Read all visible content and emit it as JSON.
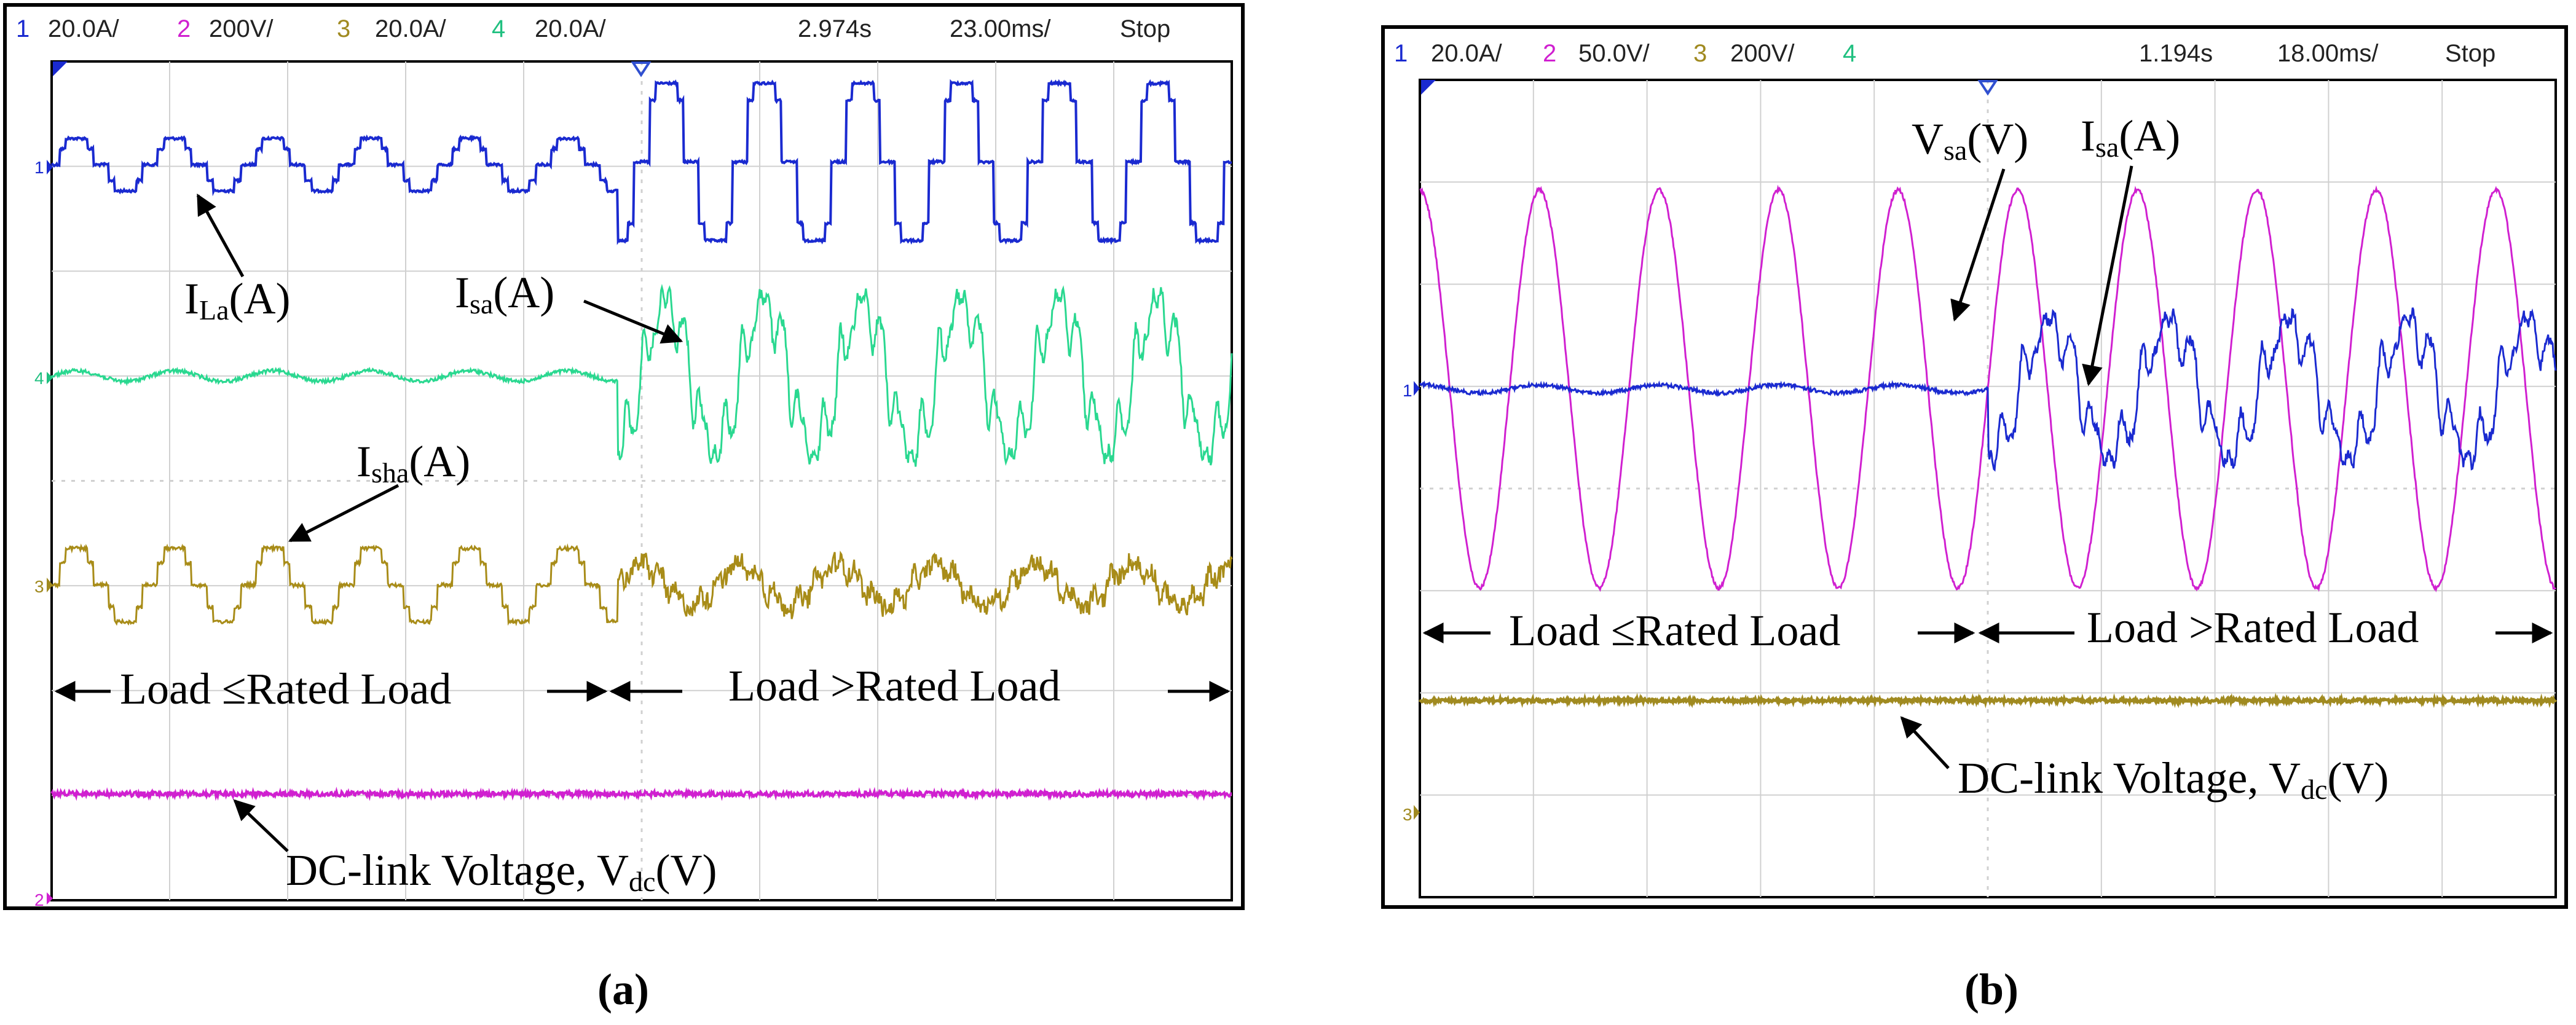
{
  "panels": [
    {
      "id": "a",
      "caption": "(a)",
      "header": {
        "channels": [
          {
            "num": "1",
            "scale": "20.0A/",
            "color": "#1a2ad0"
          },
          {
            "num": "2",
            "scale": "200V/",
            "color": "#d020d0"
          },
          {
            "num": "3",
            "scale": "20.0A/",
            "color": "#a08a20"
          },
          {
            "num": "4",
            "scale": "20.0A/",
            "color": "#20c080"
          }
        ],
        "time": "2.974s",
        "timebase": "23.00ms/",
        "status": "Stop"
      },
      "labels": {
        "ila": {
          "main": "I",
          "sub": "La",
          "unit": "(A)"
        },
        "isa": {
          "main": "I",
          "sub": "sa",
          "unit": "(A)"
        },
        "isha": {
          "main": "I",
          "sub": "sha",
          "unit": "(A)"
        },
        "load_left": "Load ≤Rated Load",
        "load_right": "Load >Rated Load",
        "dc": {
          "main": "DC-link Voltage, V",
          "sub": "dc",
          "unit": "(V)"
        }
      }
    },
    {
      "id": "b",
      "caption": "(b)",
      "header": {
        "channels": [
          {
            "num": "1",
            "scale": "20.0A/",
            "color": "#1a2ad0"
          },
          {
            "num": "2",
            "scale": "50.0V/",
            "color": "#d020d0"
          },
          {
            "num": "3",
            "scale": "200V/",
            "color": "#a08a20"
          },
          {
            "num": "4",
            "scale": "",
            "color": "#20c080"
          }
        ],
        "time": "1.194s",
        "timebase": "18.00ms/",
        "status": "Stop"
      },
      "labels": {
        "vsa": {
          "main": "V",
          "sub": "sa",
          "unit": "(V)"
        },
        "isa": {
          "main": "I",
          "sub": "sa",
          "unit": "(A)"
        },
        "load_left": "Load ≤Rated Load",
        "load_right": "Load >Rated Load",
        "dc": {
          "main": "DC-link Voltage, V",
          "sub": "dc",
          "unit": "(V)"
        }
      }
    }
  ],
  "chart_data": [
    {
      "type": "line",
      "panel": "a",
      "x_divisions": 10,
      "y_divisions": 8,
      "grid": true,
      "series": [
        {
          "name": "I_La(A)",
          "channel": 1,
          "shape": "stepped square wave",
          "cycles": 12,
          "amplitude_div_before": 0.25,
          "amplitude_div_after": 0.75
        },
        {
          "name": "I_sa(A)",
          "channel": 4,
          "shape": "sinusoidal then distorted",
          "cycles": 12,
          "amplitude_div_before": 0.05,
          "amplitude_div_after": 0.8
        },
        {
          "name": "I_sha(A)",
          "channel": 3,
          "shape": "stepped square wave then distorted",
          "cycles": 12,
          "amplitude_div_before": 0.35,
          "amplitude_div_after": 0.35
        },
        {
          "name": "DC-link Voltage, V_dc(V)",
          "channel": 2,
          "shape": "flat",
          "amplitude_div": 0.02
        }
      ],
      "transition_division": 4.8
    },
    {
      "type": "line",
      "panel": "b",
      "x_divisions": 10,
      "y_divisions": 8,
      "grid": true,
      "series": [
        {
          "name": "V_sa(V)",
          "channel": 2,
          "shape": "sine",
          "cycles": 9.5,
          "amplitude_div": 1.95
        },
        {
          "name": "I_sa(A)",
          "channel": 1,
          "shape": "sinusoidal then distorted",
          "cycles": 9.5,
          "amplitude_div_before": 0.04,
          "amplitude_div_after": 0.8
        },
        {
          "name": "DC-link Voltage, V_dc(V)",
          "channel": 3,
          "shape": "flat",
          "amplitude_div": 0.02
        }
      ],
      "transition_division": 5
    }
  ]
}
